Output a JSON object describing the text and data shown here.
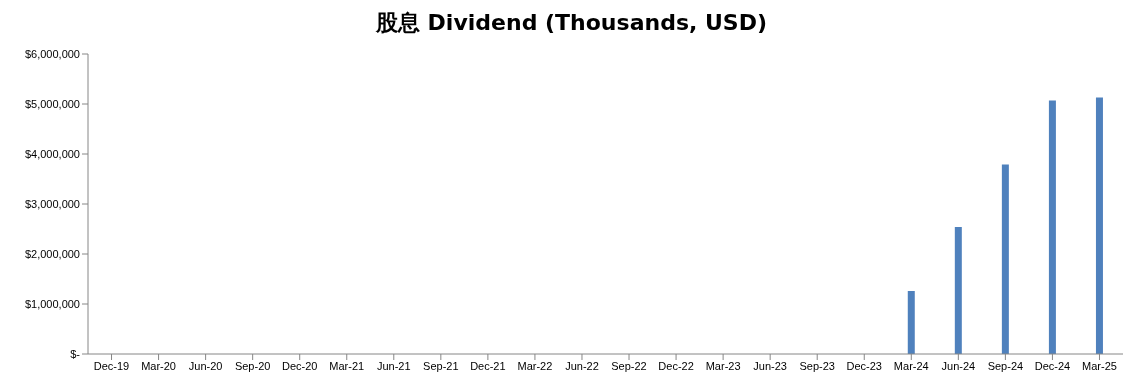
{
  "chart_data": {
    "type": "bar",
    "title": "股息 Dividend (Thousands, USD)",
    "categories": [
      "Dec-19",
      "Mar-20",
      "Jun-20",
      "Sep-20",
      "Dec-20",
      "Mar-21",
      "Jun-21",
      "Sep-21",
      "Dec-21",
      "Mar-22",
      "Jun-22",
      "Sep-22",
      "Dec-22",
      "Mar-23",
      "Jun-23",
      "Sep-23",
      "Dec-23",
      "Mar-24",
      "Jun-24",
      "Sep-24",
      "Dec-24",
      "Mar-25"
    ],
    "values": [
      null,
      null,
      null,
      null,
      null,
      null,
      null,
      null,
      null,
      null,
      null,
      null,
      null,
      null,
      null,
      null,
      null,
      1260000,
      2540000,
      3790000,
      5070000,
      5130000
    ],
    "color": "#4f81bd",
    "ylim": [
      0,
      6000000
    ],
    "yticks": [
      {
        "value": 0,
        "label": "$-"
      },
      {
        "value": 1000000,
        "label": "$1,000,000"
      },
      {
        "value": 2000000,
        "label": "$2,000,000"
      },
      {
        "value": 3000000,
        "label": "$3,000,000"
      },
      {
        "value": 4000000,
        "label": "$4,000,000"
      },
      {
        "value": 5000000,
        "label": "$5,000,000"
      },
      {
        "value": 6000000,
        "label": "$6,000,000"
      }
    ],
    "grid": false,
    "legend": false
  }
}
